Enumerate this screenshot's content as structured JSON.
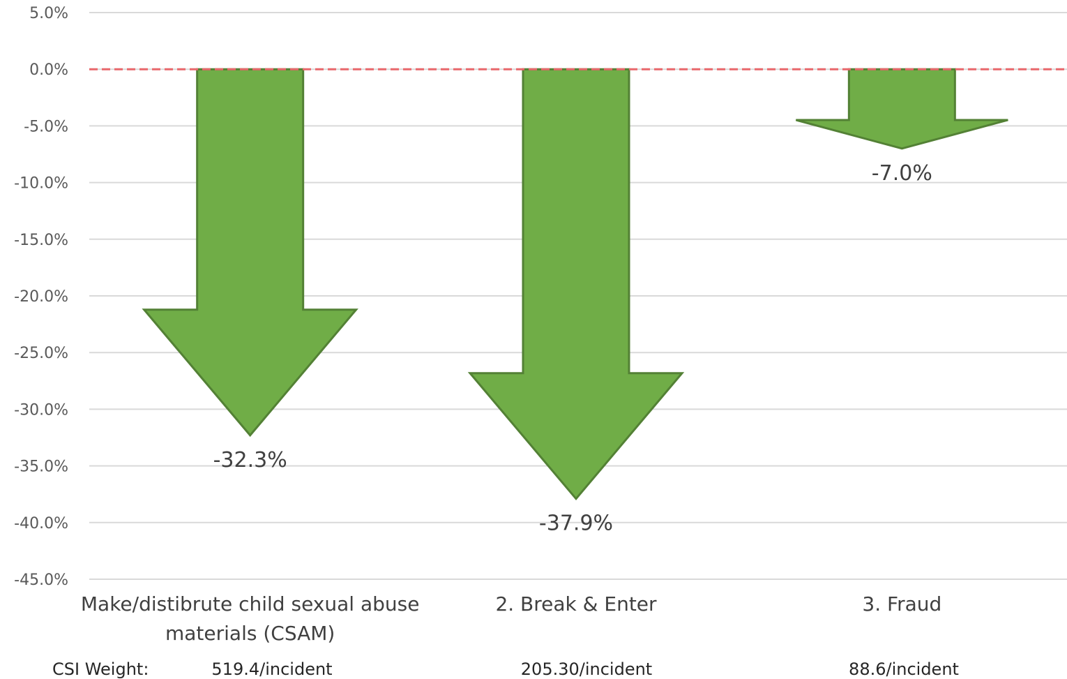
{
  "chart_data": {
    "type": "bar",
    "categories": [
      [
        "Make/distibrute child sexual abuse",
        "materials (CSAM)"
      ],
      [
        "2.  Break & Enter"
      ],
      [
        "3.  Fraud"
      ]
    ],
    "values": [
      -32.3,
      -37.9,
      -7.0
    ],
    "data_labels": [
      "-32.3%",
      "-37.9%",
      "-7.0%"
    ],
    "ylim": [
      -45,
      5
    ],
    "y_ticks": [
      "5.0%",
      "0.0%",
      "-5.0%",
      "-10.0%",
      "-15.0%",
      "-20.0%",
      "-25.0%",
      "-30.0%",
      "-35.0%",
      "-40.0%",
      "-45.0%"
    ],
    "y_tick_values": [
      5,
      0,
      -5,
      -10,
      -15,
      -20,
      -25,
      -30,
      -35,
      -40,
      -45
    ],
    "grid": true,
    "reference_line": {
      "value": 0,
      "style": "dashed",
      "color": "#e8676b"
    },
    "bar_shape": "down-arrow",
    "bar_color": "#70ad47",
    "bar_edge_color": "#538135",
    "csi_weight_label": "CSI Weight:",
    "csi_weights": [
      "519.4/incident",
      "205.30/incident",
      "88.6/incident"
    ]
  }
}
